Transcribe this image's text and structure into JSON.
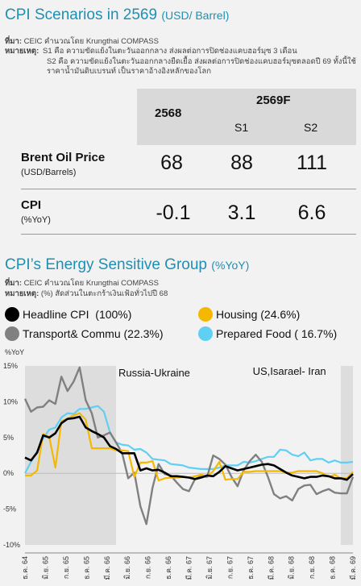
{
  "header": {
    "title": "CPI Scenarios in 2569",
    "title_unit": "(USD/ Barrel)",
    "source_label": "ที่มา:",
    "source_text": "CEIC คำนวณโดย Krungthai COMPASS",
    "note_label": "หมายเหตุ:",
    "note_line1": "S1 คือ ความขัดแย้งในตะวันออกกลาง ส่งผลต่อการปิดช่องแคบฮอร์มุซ 3 เดือน",
    "note_line2": "S2 คือ ความขัดแย้งในตะวันออกกลางยืดเยื้อ ส่งผลต่อการปิดช่องแคบฮอร์มุซตลอดปี 69 ทั้งนี้ใช้ราคาน้ำมันดิบเบรนท์ เป็นราคาอ้างอิงหลักของโลก"
  },
  "table": {
    "col_2568": "2568",
    "col_2569F": "2569F",
    "col_s1": "S1",
    "col_s2": "S2",
    "rows": [
      {
        "label": "Brent Oil Price",
        "sub": "(USD/Barrels)",
        "v2568": "68",
        "s1": "88",
        "s2": "111"
      },
      {
        "label": "CPI",
        "sub": "(%YoY)",
        "v2568": "-0.1",
        "s1": "3.1",
        "s2": "6.6"
      }
    ]
  },
  "section2": {
    "title": "CPI’s Energy Sensitive Group",
    "title_unit": "(%YoY)",
    "source_label": "ที่มา:",
    "source_text": "CEIC คำนวณโดย Krungthai COMPASS",
    "note_label": "หมายเหตุ:",
    "note_text": "(%) สัดส่วนในตะกร้าเงินเฟ้อทั่วไปปี 68"
  },
  "chart_data": {
    "type": "line",
    "ylabel": "%YoY",
    "ylim": [
      -10,
      15
    ],
    "yticks": [
      "15%",
      "10%",
      "5%",
      "0%",
      "-5%",
      "-10%"
    ],
    "x_tick_labels": [
      "ธ.ค. 64",
      "มิ.ย. 65",
      "ก.ย. 65",
      "ธ.ค. 65",
      "มี.ค. 66",
      "มิ.ย. 66",
      "ก.ย. 66",
      "ธ.ค. 66",
      "มี.ค. 67",
      "มิ.ย. 67",
      "ก.ย. 67",
      "ธ.ค. 67",
      "มี.ค. 68",
      "มิ.ย. 68",
      "ก.ย. 68",
      "ธ.ค. 68",
      "มี.ค. 69"
    ],
    "annotations": [
      "Russia-Ukraine",
      "US,Isarael- Iran"
    ],
    "shaded_ranges": [
      [
        0,
        15
      ],
      [
        52,
        54
      ]
    ],
    "x": [
      0,
      1,
      2,
      3,
      4,
      5,
      6,
      7,
      8,
      9,
      10,
      11,
      12,
      13,
      14,
      15,
      16,
      17,
      18,
      19,
      20,
      21,
      22,
      23,
      24,
      25,
      26,
      27,
      28,
      29,
      30,
      31,
      32,
      33,
      34,
      35,
      36,
      37,
      38,
      39,
      40,
      41,
      42,
      43,
      44,
      45,
      46,
      47,
      48,
      49,
      50,
      51,
      52,
      53,
      54
    ],
    "series": [
      {
        "name": "Headline CPI",
        "weight": "(100%)",
        "color": "#000000",
        "values": [
          2.2,
          1.8,
          2.9,
          5.3,
          5.0,
          5.6,
          7.0,
          7.6,
          7.7,
          7.9,
          6.4,
          5.9,
          5.5,
          5.0,
          3.8,
          3.4,
          2.8,
          2.8,
          2.8,
          0.4,
          0.7,
          0.4,
          0.5,
          0.1,
          -0.4,
          -0.4,
          -0.5,
          -0.6,
          -0.8,
          -0.6,
          -0.3,
          -0.4,
          0.2,
          1.0,
          0.7,
          0.4,
          0.6,
          0.8,
          1.0,
          1.2,
          1.3,
          1.1,
          0.6,
          0.1,
          -0.3,
          -0.5,
          -0.7,
          -0.5,
          -0.5,
          -0.3,
          -0.4,
          -0.7,
          -0.7,
          -0.9,
          -0.1
        ]
      },
      {
        "name": "Housing",
        "weight": "(24.6%)",
        "color": "#f5b800",
        "values": [
          -0.3,
          -0.3,
          0.4,
          5.5,
          5.1,
          0.8,
          7.3,
          7.6,
          8.1,
          8.4,
          7.5,
          3.5,
          3.5,
          3.5,
          3.5,
          3.2,
          3.2,
          3.1,
          -0.5,
          1.5,
          1.5,
          1.7,
          -1.0,
          -0.7,
          -0.6,
          -0.6,
          -0.5,
          -0.6,
          -0.4,
          -0.2,
          -0.4,
          0.3,
          1.6,
          -0.9,
          -0.8,
          -0.8,
          0.2,
          0.2,
          0.3,
          0.3,
          0.3,
          0.3,
          0.3,
          0.1,
          0.1,
          0.3,
          0.3,
          0.3,
          0.3,
          0.0,
          -0.5,
          -0.2,
          -0.7,
          -0.7,
          0.2
        ]
      },
      {
        "name": "Transport& Commu",
        "weight": "(22.3%)",
        "color": "#808080",
        "values": [
          10.4,
          8.6,
          9.2,
          9.3,
          10.2,
          9.7,
          13.5,
          11.5,
          12.8,
          14.8,
          10.2,
          8.4,
          5.0,
          5.3,
          5.7,
          4.3,
          2.8,
          -0.7,
          0.1,
          -4.6,
          -7.1,
          -2.0,
          1.3,
          -0.1,
          -0.3,
          -1.3,
          -2.2,
          -2.5,
          -0.8,
          -0.4,
          -0.5,
          2.5,
          2.0,
          1.2,
          -0.5,
          -1.8,
          0.4,
          1.7,
          2.6,
          1.6,
          -0.5,
          -2.9,
          -3.5,
          -3.2,
          -3.8,
          -2.2,
          -1.7,
          -1.6,
          -2.9,
          -2.5,
          -2.2,
          -2.7,
          -2.8,
          -2.8,
          -0.5
        ]
      },
      {
        "name": "Prepared Food",
        "weight": "( 16.7%)",
        "color": "#5fd0f3",
        "values": [
          0.0,
          1.6,
          3.1,
          4.9,
          6.1,
          6.4,
          7.8,
          8.4,
          8.3,
          9.0,
          9.0,
          9.2,
          9.4,
          8.6,
          5.7,
          4.3,
          4.0,
          3.9,
          3.3,
          3.4,
          2.9,
          2.0,
          1.9,
          1.8,
          1.3,
          1.2,
          1.1,
          0.8,
          0.7,
          0.6,
          0.6,
          0.6,
          0.8,
          1.1,
          1.1,
          1.1,
          1.6,
          1.5,
          1.7,
          2.0,
          2.3,
          2.3,
          3.3,
          3.2,
          2.6,
          2.4,
          2.9,
          1.8,
          2.0,
          2.0,
          1.5,
          1.8,
          1.5,
          1.5,
          1.6
        ]
      }
    ]
  }
}
